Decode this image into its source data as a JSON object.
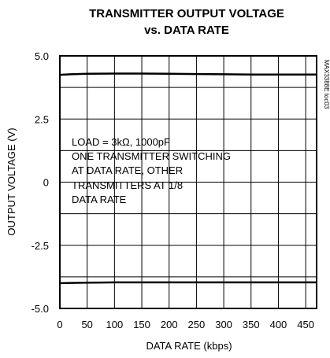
{
  "chart_data": {
    "type": "line",
    "title": "TRANSMITTER OUTPUT VOLTAGE",
    "subtitle": "vs. DATA RATE",
    "xlabel": "DATA RATE (kbps)",
    "ylabel": "OUTPUT VOLTAGE (V)",
    "xlim": [
      0,
      470
    ],
    "ylim": [
      -5.0,
      5.0
    ],
    "x_ticks": [
      0,
      50,
      100,
      150,
      200,
      250,
      300,
      350,
      400,
      450
    ],
    "y_ticks": [
      5.0,
      2.5,
      0,
      -2.5,
      -5.0
    ],
    "x_tick_labels": [
      "0",
      "50",
      "100",
      "150",
      "200",
      "250",
      "300",
      "350",
      "400",
      "450"
    ],
    "y_tick_labels": [
      "5.0",
      "2.5",
      "0",
      "-2.5",
      "-5.0"
    ],
    "grid": true,
    "part_number": "MAX3388E toc03",
    "annotation_lines": [
      "LOAD = 3kΩ, 1000pF",
      "ONE TRANSMITTER SWITCHING",
      "AT DATA RATE, OTHER",
      "TRANSMITTERS AT 1/8",
      "DATA RATE"
    ],
    "series": [
      {
        "x": [
          0,
          20,
          50,
          100,
          150,
          200,
          250,
          300,
          350,
          400,
          450,
          470
        ],
        "y": [
          4.25,
          4.27,
          4.29,
          4.3,
          4.3,
          4.29,
          4.28,
          4.27,
          4.26,
          4.26,
          4.26,
          4.26
        ]
      },
      {
        "x": [
          0,
          20,
          50,
          100,
          150,
          200,
          250,
          300,
          350,
          400,
          450,
          470
        ],
        "y": [
          -4.0,
          -3.99,
          -3.98,
          -3.97,
          -3.97,
          -3.97,
          -3.97,
          -3.97,
          -3.97,
          -3.97,
          -3.97,
          -3.97
        ]
      }
    ],
    "line_color": "#000000"
  }
}
